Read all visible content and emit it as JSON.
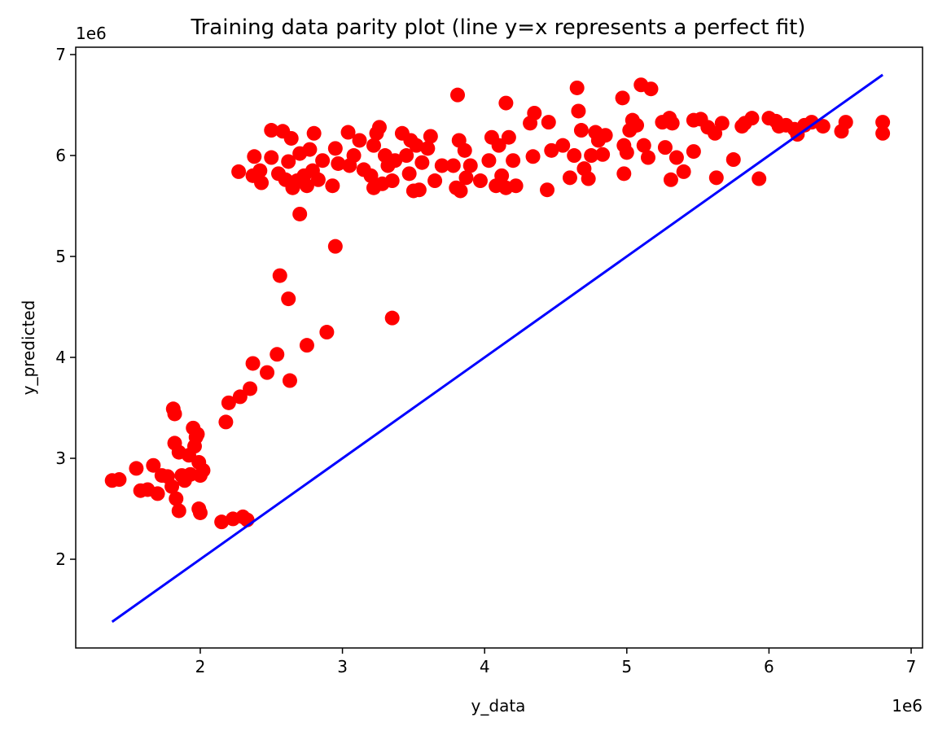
{
  "chart_data": {
    "type": "scatter",
    "title": "Training data parity plot (line y=x represents a perfect fit)",
    "x_label": "y_data",
    "y_label": "y_predicted",
    "x_offset": "1e6",
    "y_offset": "1e6",
    "xlim": [
      1.124,
      7.08
    ],
    "ylim": [
      1.121,
      7.073
    ],
    "xticks": [
      2,
      3,
      4,
      5,
      6,
      7
    ],
    "yticks": [
      2,
      3,
      4,
      5,
      6,
      7
    ],
    "series": [
      {
        "type": "scatter",
        "color": "#ff0000",
        "x": [
          1.38,
          1.43,
          1.55,
          1.58,
          1.63,
          1.67,
          1.7,
          1.73,
          1.77,
          1.8,
          1.81,
          1.82,
          1.82,
          1.83,
          1.85,
          1.85,
          1.87,
          1.89,
          1.92,
          1.93,
          1.95,
          1.96,
          1.97,
          1.98,
          1.99,
          2.0,
          1.99,
          2.0,
          2.02,
          2.15,
          2.18,
          2.2,
          2.23,
          2.28,
          2.3,
          2.33,
          2.35,
          2.37,
          2.47,
          2.54,
          2.56,
          2.62,
          2.63,
          2.75,
          2.89,
          2.95,
          2.7,
          3.35,
          2.27,
          2.38,
          2.37,
          2.42,
          2.43,
          2.5,
          2.5,
          2.55,
          2.58,
          2.6,
          2.62,
          2.64,
          2.65,
          2.68,
          2.7,
          2.73,
          2.75,
          2.77,
          2.79,
          2.8,
          2.83,
          2.86,
          2.93,
          2.95,
          2.97,
          3.04,
          3.05,
          3.08,
          3.12,
          3.15,
          3.2,
          3.22,
          3.22,
          3.24,
          3.26,
          3.28,
          3.3,
          3.32,
          3.35,
          3.37,
          3.42,
          3.45,
          3.47,
          3.48,
          3.5,
          3.52,
          3.54,
          3.56,
          3.6,
          3.62,
          3.65,
          3.7,
          3.78,
          3.8,
          3.81,
          3.82,
          3.83,
          3.86,
          3.87,
          3.9,
          3.97,
          4.03,
          4.05,
          4.08,
          4.1,
          4.12,
          4.15,
          4.15,
          4.17,
          4.2,
          4.22,
          4.32,
          4.34,
          4.35,
          4.44,
          4.45,
          4.47,
          4.55,
          4.6,
          4.63,
          4.65,
          4.66,
          4.68,
          4.7,
          4.73,
          4.75,
          4.78,
          4.8,
          4.83,
          4.85,
          4.97,
          4.98,
          4.98,
          5.0,
          5.02,
          5.04,
          5.07,
          5.1,
          5.12,
          5.15,
          5.17,
          5.25,
          5.27,
          5.3,
          5.31,
          5.32,
          5.35,
          5.4,
          5.47,
          5.47,
          5.52,
          5.57,
          5.62,
          5.63,
          5.67,
          5.75,
          5.81,
          5.83,
          5.88,
          5.93,
          6.0,
          6.05,
          6.07,
          6.12,
          6.18,
          6.2,
          6.25,
          6.3,
          6.38,
          6.51,
          6.54,
          6.8,
          6.8
        ],
        "values": [
          2.78,
          2.79,
          2.9,
          2.68,
          2.69,
          2.93,
          2.65,
          2.83,
          2.82,
          2.72,
          3.49,
          3.44,
          3.15,
          2.6,
          2.48,
          3.06,
          2.83,
          2.78,
          3.03,
          2.84,
          3.3,
          3.12,
          3.21,
          3.24,
          2.5,
          2.46,
          2.96,
          2.83,
          2.88,
          2.37,
          3.36,
          3.55,
          2.4,
          3.61,
          2.42,
          2.39,
          3.69,
          3.94,
          3.85,
          4.03,
          4.81,
          4.58,
          3.77,
          4.12,
          4.25,
          5.1,
          5.42,
          4.39,
          5.84,
          5.99,
          5.8,
          5.85,
          5.73,
          6.25,
          5.98,
          5.82,
          6.24,
          5.76,
          5.94,
          6.17,
          5.68,
          5.75,
          6.02,
          5.8,
          5.7,
          6.06,
          5.85,
          6.22,
          5.76,
          5.95,
          5.7,
          6.07,
          5.92,
          6.23,
          5.9,
          6.0,
          6.15,
          5.86,
          5.8,
          6.1,
          5.68,
          6.22,
          6.28,
          5.72,
          6.0,
          5.9,
          5.75,
          5.95,
          6.22,
          6.0,
          5.82,
          6.15,
          5.65,
          6.1,
          5.66,
          5.93,
          6.07,
          6.19,
          5.75,
          5.9,
          5.9,
          5.68,
          6.6,
          6.15,
          5.65,
          6.05,
          5.78,
          5.9,
          5.75,
          5.95,
          6.18,
          5.7,
          6.1,
          5.8,
          6.52,
          5.68,
          6.18,
          5.95,
          5.7,
          6.32,
          5.99,
          6.42,
          5.66,
          6.33,
          6.05,
          6.1,
          5.78,
          6.0,
          6.67,
          6.44,
          6.25,
          5.87,
          5.77,
          6.0,
          6.23,
          6.15,
          6.01,
          6.2,
          6.57,
          6.1,
          5.82,
          6.03,
          6.25,
          6.35,
          6.3,
          6.7,
          6.1,
          5.98,
          6.66,
          6.33,
          6.08,
          6.37,
          5.76,
          6.32,
          5.98,
          5.84,
          6.35,
          6.04,
          6.36,
          6.28,
          6.22,
          5.78,
          6.32,
          5.96,
          6.29,
          6.32,
          6.37,
          5.77,
          6.37,
          6.34,
          6.29,
          6.3,
          6.26,
          6.21,
          6.3,
          6.33,
          6.29,
          6.24,
          6.33,
          6.33,
          6.22
        ]
      },
      {
        "type": "line",
        "color": "#0000ff",
        "x": [
          1.38,
          6.8
        ],
        "values": [
          1.38,
          6.8
        ]
      }
    ]
  }
}
